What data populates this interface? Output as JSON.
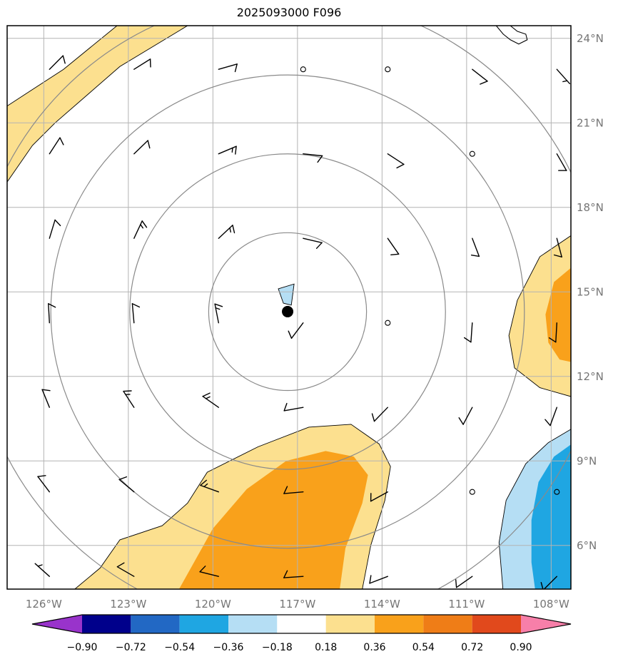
{
  "title": "2025093000 F096",
  "chart_data": {
    "type": "heatmap",
    "subtype": "map-contour-wind-barbs",
    "title": "2025093000 F096",
    "x_axis": {
      "range": [
        -127.3,
        -107.3
      ],
      "ticks": [
        {
          "lon": -126,
          "label": "126°W"
        },
        {
          "lon": -123,
          "label": "123°W"
        },
        {
          "lon": -120,
          "label": "120°W"
        },
        {
          "lon": -117,
          "label": "117°W"
        },
        {
          "lon": -114,
          "label": "114°W"
        },
        {
          "lon": -111,
          "label": "111°W"
        },
        {
          "lon": -108,
          "label": "108°W"
        }
      ]
    },
    "y_axis": {
      "range": [
        4.45,
        24.45
      ],
      "ticks": [
        {
          "lat": 24,
          "label": "24°N"
        },
        {
          "lat": 21,
          "label": "21°N"
        },
        {
          "lat": 18,
          "label": "18°N"
        },
        {
          "lat": 15,
          "label": "15°N"
        },
        {
          "lat": 12,
          "label": "12°N"
        },
        {
          "lat": 9,
          "label": "9°N"
        },
        {
          "lat": 6,
          "label": "6°N"
        }
      ]
    },
    "grid": {
      "color": "#b3b3b3",
      "lons": [
        -126,
        -123,
        -120,
        -117,
        -114,
        -111,
        -108
      ],
      "lats": [
        6,
        9,
        12,
        15,
        18,
        21,
        24
      ]
    },
    "storm": {
      "center": {
        "lon": -117.35,
        "lat": 14.3
      },
      "marker_color": "#000000",
      "ring_radii_deg": [
        2.8,
        5.6,
        8.4,
        11.2
      ],
      "ring_color": "#8a8a8a"
    },
    "colorbar": {
      "tick_labels": [
        "−0.90",
        "−0.72",
        "−0.54",
        "−0.36",
        "−0.18",
        "0.18",
        "0.36",
        "0.54",
        "0.72",
        "0.90"
      ],
      "segment_colors": [
        "#00008B",
        "#2268C4",
        "#1FA6E2",
        "#B5DEF4",
        "#FFFFFF",
        "#FCE08F",
        "#F9A11B",
        "#EF7D17",
        "#E1491C"
      ],
      "extend_left_color": "#9933CB",
      "extend_right_color": "#F77FA9"
    },
    "filled_regions": [
      {
        "name": "nw-yellow-band",
        "level": "0.18 to 0.36",
        "color": "#FCE08F",
        "outline": "#000000",
        "points": [
          [
            -127.3,
            21.6
          ],
          [
            -125.3,
            22.9
          ],
          [
            -123.4,
            24.45
          ],
          [
            -120.9,
            24.45
          ],
          [
            -123.3,
            23.0
          ],
          [
            -125.6,
            21.0
          ],
          [
            -126.4,
            20.2
          ],
          [
            -127.3,
            18.9
          ]
        ]
      },
      {
        "name": "south-yellow",
        "level": "0.18 to 0.36",
        "color": "#FCE08F",
        "outline": "#000000",
        "points": [
          [
            -124.9,
            4.45
          ],
          [
            -124.0,
            5.2
          ],
          [
            -123.3,
            6.2
          ],
          [
            -121.8,
            6.7
          ],
          [
            -120.9,
            7.5
          ],
          [
            -120.2,
            8.6
          ],
          [
            -118.4,
            9.5
          ],
          [
            -116.6,
            10.2
          ],
          [
            -115.1,
            10.3
          ],
          [
            -114.1,
            9.6
          ],
          [
            -113.7,
            8.8
          ],
          [
            -113.9,
            7.6
          ],
          [
            -114.4,
            6.0
          ],
          [
            -114.7,
            4.45
          ]
        ]
      },
      {
        "name": "south-orange",
        "level": "0.36 to 0.54",
        "color": "#F9A11B",
        "outline": "none",
        "points": [
          [
            -121.2,
            4.45
          ],
          [
            -120.0,
            6.6
          ],
          [
            -118.8,
            8.0
          ],
          [
            -117.4,
            9.0
          ],
          [
            -116.0,
            9.35
          ],
          [
            -115.0,
            9.15
          ],
          [
            -114.5,
            8.5
          ],
          [
            -114.7,
            7.5
          ],
          [
            -115.3,
            5.9
          ],
          [
            -115.5,
            4.45
          ]
        ]
      },
      {
        "name": "east-yellow",
        "level": "0.18 to 0.36",
        "color": "#FCE08F",
        "outline": "#000000",
        "points": [
          [
            -107.0,
            17.2
          ],
          [
            -108.4,
            16.25
          ],
          [
            -109.2,
            14.7
          ],
          [
            -109.5,
            13.45
          ],
          [
            -109.3,
            12.3
          ],
          [
            -108.4,
            11.6
          ],
          [
            -107.0,
            11.2
          ]
        ]
      },
      {
        "name": "east-orange",
        "level": "0.36 to 0.54",
        "color": "#F9A11B",
        "outline": "none",
        "points": [
          [
            -107.0,
            16.1
          ],
          [
            -107.9,
            15.35
          ],
          [
            -108.2,
            14.2
          ],
          [
            -108.1,
            13.2
          ],
          [
            -107.7,
            12.6
          ],
          [
            -107.0,
            12.45
          ]
        ]
      },
      {
        "name": "se-light-blue",
        "level": "−0.36 to −0.18",
        "color": "#B5DEF4",
        "outline": "#000000",
        "points": [
          [
            -107.0,
            10.3
          ],
          [
            -108.1,
            9.65
          ],
          [
            -108.9,
            8.9
          ],
          [
            -109.6,
            7.6
          ],
          [
            -109.85,
            6.1
          ],
          [
            -109.7,
            4.3
          ],
          [
            -107.0,
            4.3
          ]
        ]
      },
      {
        "name": "se-blue",
        "level": "−0.54 to −0.36",
        "color": "#1FA6E2",
        "outline": "none",
        "points": [
          [
            -107.0,
            9.8
          ],
          [
            -107.9,
            9.15
          ],
          [
            -108.45,
            8.25
          ],
          [
            -108.7,
            6.9
          ],
          [
            -108.7,
            5.4
          ],
          [
            -108.55,
            4.3
          ],
          [
            -107.0,
            4.3
          ]
        ]
      },
      {
        "name": "center-light-blue-patch",
        "level": "−0.36 to −0.18",
        "color": "#B5DEF4",
        "outline": "#000000",
        "points": [
          [
            -117.68,
            15.11
          ],
          [
            -117.12,
            15.28
          ],
          [
            -117.22,
            14.53
          ],
          [
            -117.5,
            14.6
          ]
        ]
      }
    ],
    "coastline": {
      "color": "#000000",
      "points": [
        [
          -109.95,
          24.45
        ],
        [
          -109.7,
          24.15
        ],
        [
          -109.45,
          23.95
        ],
        [
          -109.15,
          23.8
        ],
        [
          -108.85,
          23.95
        ],
        [
          -108.9,
          24.15
        ],
        [
          -109.2,
          24.25
        ],
        [
          -109.45,
          24.45
        ]
      ]
    },
    "wind_barbs": [
      {
        "lon": -125.8,
        "lat": 22.9,
        "dir": 45,
        "spd": 10
      },
      {
        "lon": -122.8,
        "lat": 22.9,
        "dir": 58,
        "spd": 10
      },
      {
        "lon": -119.8,
        "lat": 22.9,
        "dir": 74,
        "spd": 10
      },
      {
        "lon": -110.8,
        "lat": 22.9,
        "dir": 128,
        "spd": 10
      },
      {
        "lon": -107.8,
        "lat": 22.9,
        "dir": 138,
        "spd": 5
      },
      {
        "lon": -125.8,
        "lat": 19.9,
        "dir": 33,
        "spd": 10
      },
      {
        "lon": -122.8,
        "lat": 19.9,
        "dir": 46,
        "spd": 10
      },
      {
        "lon": -119.8,
        "lat": 19.9,
        "dir": 67,
        "spd": 15
      },
      {
        "lon": -116.8,
        "lat": 19.9,
        "dir": 96,
        "spd": 10
      },
      {
        "lon": -113.8,
        "lat": 19.9,
        "dir": 123,
        "spd": 10
      },
      {
        "lon": -107.8,
        "lat": 19.9,
        "dir": 150,
        "spd": 10
      },
      {
        "lon": -125.8,
        "lat": 16.9,
        "dir": 17,
        "spd": 10
      },
      {
        "lon": -122.8,
        "lat": 16.9,
        "dir": 25,
        "spd": 15
      },
      {
        "lon": -119.8,
        "lat": 16.9,
        "dir": 47,
        "spd": 15
      },
      {
        "lon": -116.8,
        "lat": 16.9,
        "dir": 103,
        "spd": 10
      },
      {
        "lon": -113.8,
        "lat": 16.9,
        "dir": 145,
        "spd": 10
      },
      {
        "lon": -110.8,
        "lat": 16.9,
        "dir": 159,
        "spd": 10
      },
      {
        "lon": -107.8,
        "lat": 16.9,
        "dir": 165,
        "spd": 10
      },
      {
        "lon": -125.8,
        "lat": 13.9,
        "dir": 357,
        "spd": 10
      },
      {
        "lon": -122.8,
        "lat": 13.9,
        "dir": 355,
        "spd": 10
      },
      {
        "lon": -119.8,
        "lat": 13.9,
        "dir": 349,
        "spd": 15
      },
      {
        "lon": -116.8,
        "lat": 13.9,
        "dir": 217,
        "spd": 10
      },
      {
        "lon": -110.8,
        "lat": 13.9,
        "dir": 184,
        "spd": 10
      },
      {
        "lon": -107.8,
        "lat": 13.9,
        "dir": 183,
        "spd": 10
      },
      {
        "lon": -125.8,
        "lat": 10.9,
        "dir": 338,
        "spd": 10
      },
      {
        "lon": -122.8,
        "lat": 10.9,
        "dir": 327,
        "spd": 15
      },
      {
        "lon": -119.8,
        "lat": 10.9,
        "dir": 305,
        "spd": 15
      },
      {
        "lon": -116.8,
        "lat": 10.9,
        "dir": 260,
        "spd": 10
      },
      {
        "lon": -113.8,
        "lat": 10.9,
        "dir": 224,
        "spd": 10
      },
      {
        "lon": -110.8,
        "lat": 10.9,
        "dir": 208,
        "spd": 10
      },
      {
        "lon": -107.8,
        "lat": 10.9,
        "dir": 200,
        "spd": 10
      },
      {
        "lon": -125.8,
        "lat": 7.9,
        "dir": 323,
        "spd": 10
      },
      {
        "lon": -122.8,
        "lat": 7.9,
        "dir": 310,
        "spd": 10
      },
      {
        "lon": -119.8,
        "lat": 7.9,
        "dir": 290,
        "spd": 15
      },
      {
        "lon": -116.8,
        "lat": 7.9,
        "dir": 265,
        "spd": 10
      },
      {
        "lon": -113.8,
        "lat": 7.9,
        "dir": 241,
        "spd": 10
      },
      {
        "lon": -125.8,
        "lat": 4.9,
        "dir": 312,
        "spd": 5
      },
      {
        "lon": -122.8,
        "lat": 4.9,
        "dir": 300,
        "spd": 10
      },
      {
        "lon": -119.8,
        "lat": 4.9,
        "dir": 284,
        "spd": 10
      },
      {
        "lon": -116.8,
        "lat": 4.9,
        "dir": 266,
        "spd": 10
      },
      {
        "lon": -113.8,
        "lat": 4.9,
        "dir": 249,
        "spd": 10
      },
      {
        "lon": -110.8,
        "lat": 4.9,
        "dir": 235,
        "spd": 10
      },
      {
        "lon": -107.8,
        "lat": 4.9,
        "dir": 225,
        "spd": 10
      }
    ],
    "calm_circles": [
      {
        "lon": -116.8,
        "lat": 22.9
      },
      {
        "lon": -113.8,
        "lat": 22.9
      },
      {
        "lon": -110.8,
        "lat": 19.9
      },
      {
        "lon": -113.8,
        "lat": 13.9
      },
      {
        "lon": -110.8,
        "lat": 7.9
      },
      {
        "lon": -107.8,
        "lat": 7.9
      }
    ]
  }
}
